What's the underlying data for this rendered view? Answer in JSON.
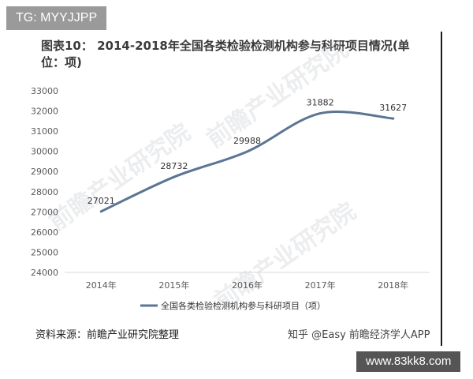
{
  "header": {
    "tag_badge": "TG: MYYJJPP",
    "title_main": "图表10：  2014-2018年全国各类检验检测机构参与科研项目情况(单",
    "title_cont": "位：项)"
  },
  "footer": {
    "source": "资料来源：前瞻产业研究院整理",
    "credit": "知乎 @Easy  前瞻经济学人APP",
    "site_badge": "www.83kk8.com"
  },
  "watermarks": [
    "前瞻产业研究院",
    "前瞻产业研究院",
    "前瞻产业研究院"
  ],
  "colors": {
    "line": "#5b7593",
    "axis": "#d9d9d9",
    "text": "#595959"
  },
  "chart_data": {
    "type": "line",
    "categories": [
      "2014年",
      "2015年",
      "2016年",
      "2017年",
      "2018年"
    ],
    "series": [
      {
        "name": "全国各类检验检测机构参与科研项目（项）",
        "values": [
          27021,
          28732,
          29988,
          31882,
          31627
        ]
      }
    ],
    "data_labels": [
      "27021",
      "28732",
      "29988",
      "31882",
      "31627"
    ],
    "y_ticks": [
      "24000",
      "25000",
      "26000",
      "27000",
      "28000",
      "29000",
      "30000",
      "31000",
      "32000",
      "33000"
    ],
    "ylim": [
      24000,
      33000
    ],
    "grid": false,
    "legend_position": "bottom"
  }
}
